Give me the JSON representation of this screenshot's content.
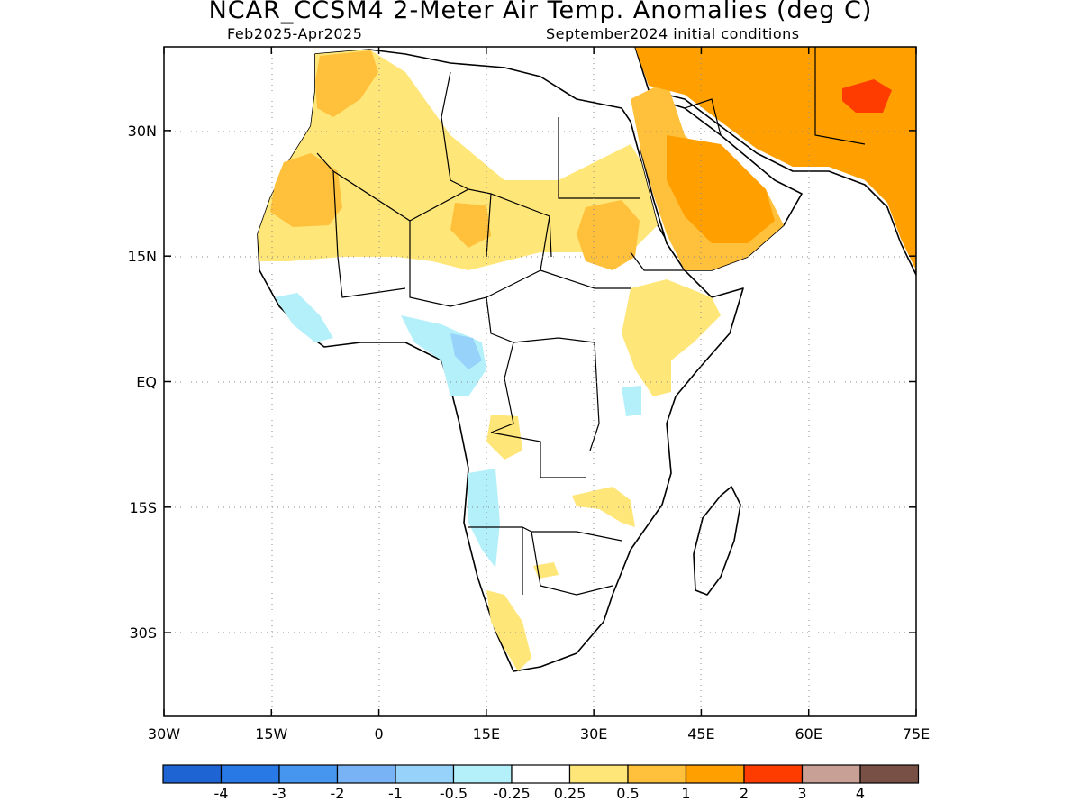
{
  "header": {
    "title": "NCAR_CCSM4 2-Meter Air Temp. Anomalies (deg C)",
    "period": "Feb2025-Apr2025",
    "init": "September2024 initial conditions"
  },
  "map": {
    "lon_range": [
      -30,
      75
    ],
    "lat_range": [
      -40,
      40
    ],
    "lat_ticks": [
      {
        "value": 30,
        "label": "30N"
      },
      {
        "value": 15,
        "label": "15N"
      },
      {
        "value": 0,
        "label": "EQ"
      },
      {
        "value": -15,
        "label": "15S"
      },
      {
        "value": -30,
        "label": "30S"
      }
    ],
    "lon_ticks": [
      {
        "value": -30,
        "label": "30W"
      },
      {
        "value": -15,
        "label": "15W"
      },
      {
        "value": 0,
        "label": "0"
      },
      {
        "value": 15,
        "label": "15E"
      },
      {
        "value": 30,
        "label": "30E"
      },
      {
        "value": 45,
        "label": "45E"
      },
      {
        "value": 60,
        "label": "60E"
      },
      {
        "value": 75,
        "label": "75E"
      }
    ],
    "gridlines": "dotted"
  },
  "legend": {
    "colors": [
      "#1e64d2",
      "#2878e6",
      "#4696f0",
      "#78b4f5",
      "#96d2fa",
      "#b4f0fa",
      "#ffffff",
      "#ffe678",
      "#ffc03c",
      "#ffa000",
      "#ff3c00",
      "#c8a096",
      "#785046"
    ],
    "labels": [
      "-4",
      "-3",
      "-2",
      "-1",
      "-0.5",
      "-0.25",
      "0.25",
      "0.5",
      "1",
      "2",
      "3",
      "4"
    ]
  }
}
